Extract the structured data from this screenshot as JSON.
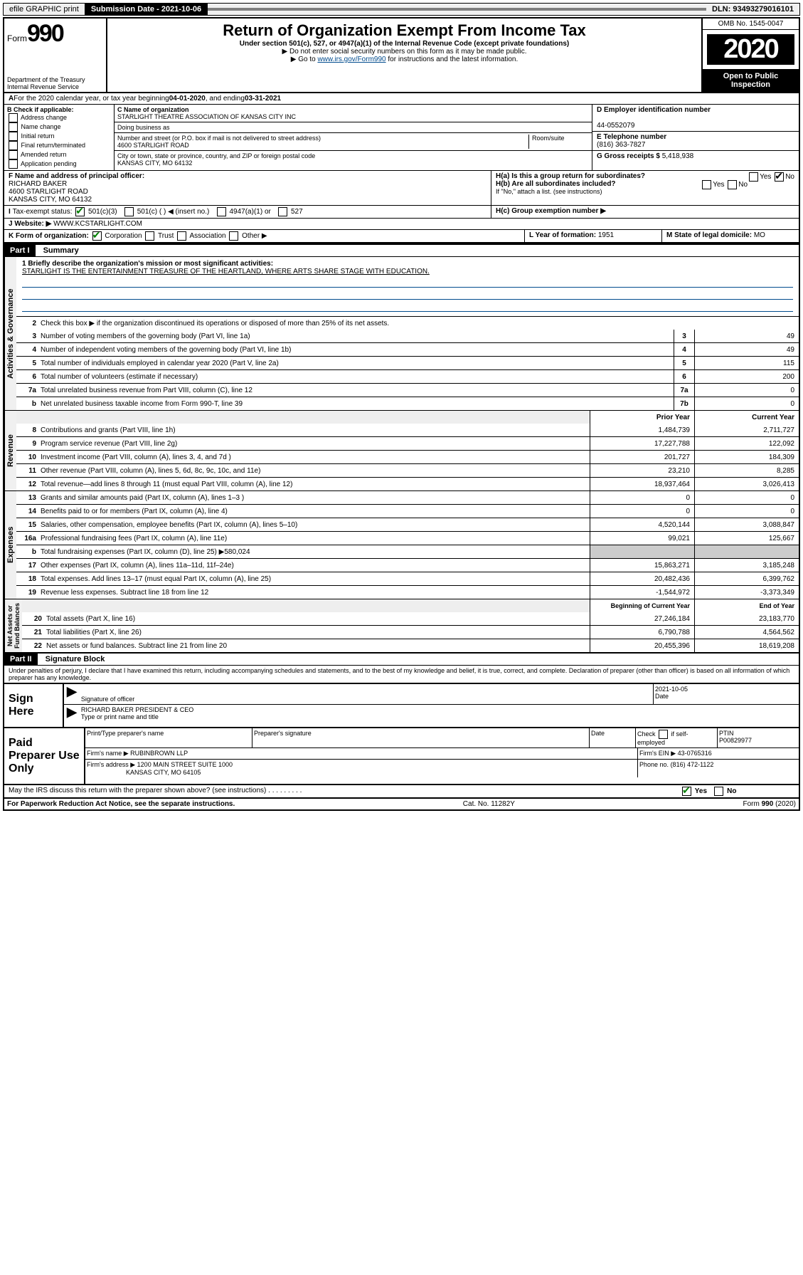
{
  "topbar": {
    "efile": "efile GRAPHIC print",
    "submission_label": "Submission Date - 2021-10-06",
    "dln": "DLN: 93493279016101"
  },
  "header": {
    "form_prefix": "Form",
    "form_number": "990",
    "dept": "Department of the Treasury Internal Revenue Service",
    "title": "Return of Organization Exempt From Income Tax",
    "subtitle": "Under section 501(c), 527, or 4947(a)(1) of the Internal Revenue Code (except private foundations)",
    "note1": "▶ Do not enter social security numbers on this form as it may be made public.",
    "note2_prefix": "▶ Go to ",
    "note2_link": "www.irs.gov/Form990",
    "note2_suffix": " for instructions and the latest information.",
    "omb": "OMB No. 1545-0047",
    "year": "2020",
    "open_public": "Open to Public Inspection"
  },
  "periodA": {
    "text_prefix": "For the 2020 calendar year, or tax year beginning ",
    "begin": "04-01-2020",
    "mid": " , and ending ",
    "end": "03-31-2021"
  },
  "boxB": {
    "label": "B Check if applicable:",
    "items": [
      "Address change",
      "Name change",
      "Initial return",
      "Final return/terminated",
      "Amended return",
      "Application pending"
    ]
  },
  "boxC": {
    "name_label": "C Name of organization",
    "name": "STARLIGHT THEATRE ASSOCIATION OF KANSAS CITY INC",
    "dba_label": "Doing business as",
    "addr_label": "Number and street (or P.O. box if mail is not delivered to street address)",
    "room_label": "Room/suite",
    "street": "4600 STARLIGHT ROAD",
    "city_label": "City or town, state or province, country, and ZIP or foreign postal code",
    "city": "KANSAS CITY, MO  64132"
  },
  "boxD": {
    "label": "D Employer identification number",
    "value": "44-0552079"
  },
  "boxE": {
    "label": "E Telephone number",
    "value": "(816) 363-7827"
  },
  "boxG": {
    "label": "G Gross receipts $",
    "value": "5,418,938"
  },
  "boxF": {
    "label": "F Name and address of principal officer:",
    "name": "RICHARD BAKER",
    "street": "4600 STARLIGHT ROAD",
    "city": "KANSAS CITY, MO  64132"
  },
  "boxH": {
    "a_label": "H(a) Is this a group return for subordinates?",
    "b_label": "H(b) Are all subordinates included?",
    "b_note": "If \"No,\" attach a list. (see instructions)",
    "c_label": "H(c) Group exemption number ▶"
  },
  "boxI": {
    "label": "Tax-exempt status:",
    "opt1": "501(c)(3)",
    "opt2": "501(c) (   ) ◀ (insert no.)",
    "opt3": "4947(a)(1) or",
    "opt4": "527"
  },
  "boxJ": {
    "label": "Website: ▶",
    "value": "WWW.KCSTARLIGHT.COM"
  },
  "boxK": {
    "label": "K Form of organization:",
    "opts": [
      "Corporation",
      "Trust",
      "Association",
      "Other ▶"
    ]
  },
  "boxL": {
    "label": "L Year of formation:",
    "value": "1951"
  },
  "boxM": {
    "label": "M State of legal domicile:",
    "value": "MO"
  },
  "part1": {
    "tag": "Part I",
    "title": "Summary"
  },
  "mission": {
    "label": "1  Briefly describe the organization's mission or most significant activities:",
    "text": "STARLIGHT IS THE ENTERTAINMENT TREASURE OF THE HEARTLAND, WHERE ARTS SHARE STAGE WITH EDUCATION."
  },
  "governance": {
    "line2": "Check this box ▶  if the organization discontinued its operations or disposed of more than 25% of its net assets.",
    "lines": [
      {
        "n": "3",
        "t": "Number of voting members of the governing body (Part VI, line 1a)",
        "box": "3",
        "v": "49"
      },
      {
        "n": "4",
        "t": "Number of independent voting members of the governing body (Part VI, line 1b)",
        "box": "4",
        "v": "49"
      },
      {
        "n": "5",
        "t": "Total number of individuals employed in calendar year 2020 (Part V, line 2a)",
        "box": "5",
        "v": "115"
      },
      {
        "n": "6",
        "t": "Total number of volunteers (estimate if necessary)",
        "box": "6",
        "v": "200"
      },
      {
        "n": "7a",
        "t": "Total unrelated business revenue from Part VIII, column (C), line 12",
        "box": "7a",
        "v": "0"
      },
      {
        "n": "b",
        "t": "Net unrelated business taxable income from Form 990-T, line 39",
        "box": "7b",
        "v": "0"
      }
    ]
  },
  "revenue": {
    "header_prior": "Prior Year",
    "header_current": "Current Year",
    "lines": [
      {
        "n": "8",
        "t": "Contributions and grants (Part VIII, line 1h)",
        "p": "1,484,739",
        "c": "2,711,727"
      },
      {
        "n": "9",
        "t": "Program service revenue (Part VIII, line 2g)",
        "p": "17,227,788",
        "c": "122,092"
      },
      {
        "n": "10",
        "t": "Investment income (Part VIII, column (A), lines 3, 4, and 7d )",
        "p": "201,727",
        "c": "184,309"
      },
      {
        "n": "11",
        "t": "Other revenue (Part VIII, column (A), lines 5, 6d, 8c, 9c, 10c, and 11e)",
        "p": "23,210",
        "c": "8,285"
      },
      {
        "n": "12",
        "t": "Total revenue—add lines 8 through 11 (must equal Part VIII, column (A), line 12)",
        "p": "18,937,464",
        "c": "3,026,413"
      }
    ]
  },
  "expenses": {
    "lines": [
      {
        "n": "13",
        "t": "Grants and similar amounts paid (Part IX, column (A), lines 1–3 )",
        "p": "0",
        "c": "0"
      },
      {
        "n": "14",
        "t": "Benefits paid to or for members (Part IX, column (A), line 4)",
        "p": "0",
        "c": "0"
      },
      {
        "n": "15",
        "t": "Salaries, other compensation, employee benefits (Part IX, column (A), lines 5–10)",
        "p": "4,520,144",
        "c": "3,088,847"
      },
      {
        "n": "16a",
        "t": "Professional fundraising fees (Part IX, column (A), line 11e)",
        "p": "99,021",
        "c": "125,667"
      },
      {
        "n": "b",
        "t": "Total fundraising expenses (Part IX, column (D), line 25) ▶580,024",
        "p": "",
        "c": ""
      },
      {
        "n": "17",
        "t": "Other expenses (Part IX, column (A), lines 11a–11d, 11f–24e)",
        "p": "15,863,271",
        "c": "3,185,248"
      },
      {
        "n": "18",
        "t": "Total expenses. Add lines 13–17 (must equal Part IX, column (A), line 25)",
        "p": "20,482,436",
        "c": "6,399,762"
      },
      {
        "n": "19",
        "t": "Revenue less expenses. Subtract line 18 from line 12",
        "p": "-1,544,972",
        "c": "-3,373,349"
      }
    ]
  },
  "netassets": {
    "header_begin": "Beginning of Current Year",
    "header_end": "End of Year",
    "lines": [
      {
        "n": "20",
        "t": "Total assets (Part X, line 16)",
        "p": "27,246,184",
        "c": "23,183,770"
      },
      {
        "n": "21",
        "t": "Total liabilities (Part X, line 26)",
        "p": "6,790,788",
        "c": "4,564,562"
      },
      {
        "n": "22",
        "t": "Net assets or fund balances. Subtract line 21 from line 20",
        "p": "20,455,396",
        "c": "18,619,208"
      }
    ]
  },
  "part2": {
    "tag": "Part II",
    "title": "Signature Block"
  },
  "perjury": "Under penalties of perjury, I declare that I have examined this return, including accompanying schedules and statements, and to the best of my knowledge and belief, it is true, correct, and complete. Declaration of preparer (other than officer) is based on all information of which preparer has any knowledge.",
  "sign": {
    "label": "Sign Here",
    "sig_label": "Signature of officer",
    "date": "2021-10-05",
    "date_label": "Date",
    "name": "RICHARD BAKER  PRESIDENT & CEO",
    "name_label": "Type or print name and title"
  },
  "paid": {
    "label": "Paid Preparer Use Only",
    "h1": "Print/Type preparer's name",
    "h2": "Preparer's signature",
    "h3": "Date",
    "h4a": "Check",
    "h4b": "if self-employed",
    "h5": "PTIN",
    "ptin": "P00829977",
    "firm_name_label": "Firm's name   ▶",
    "firm_name": "RUBINBROWN LLP",
    "firm_ein_label": "Firm's EIN ▶",
    "firm_ein": "43-0765316",
    "firm_addr_label": "Firm's address ▶",
    "firm_addr1": "1200 MAIN STREET SUITE 1000",
    "firm_addr2": "KANSAS CITY, MO  64105",
    "phone_label": "Phone no.",
    "phone": "(816) 472-1122"
  },
  "discuss": "May the IRS discuss this return with the preparer shown above? (see instructions)",
  "footer": {
    "left": "For Paperwork Reduction Act Notice, see the separate instructions.",
    "mid": "Cat. No. 11282Y",
    "right": "Form 990 (2020)"
  },
  "labels": {
    "yes": "Yes",
    "no": "No"
  }
}
